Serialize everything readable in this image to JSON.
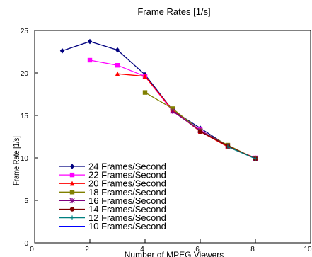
{
  "chart_data": {
    "type": "line",
    "title": "Frame Rates [1/s]",
    "xlabel": "Number of MPEG Viewers",
    "ylabel": "Frame Rate [1/s]",
    "xlim": [
      0,
      10
    ],
    "ylim": [
      0,
      25
    ],
    "x_ticks": [
      0,
      2,
      4,
      6,
      8,
      10
    ],
    "y_ticks": [
      0,
      5,
      10,
      15,
      20,
      25
    ],
    "x_tick_labels": [
      "0",
      "2",
      "4",
      "6",
      "8",
      "10"
    ],
    "y_tick_labels": [
      "0",
      "5",
      "10",
      "15",
      "20",
      "25"
    ],
    "grid": false,
    "legend_position": "bottom-left",
    "series": [
      {
        "name": "24 Frames/Second",
        "color": "#00007f",
        "marker": "diamond",
        "x": [
          1,
          2,
          3,
          4,
          5,
          6,
          7,
          8
        ],
        "y": [
          22.6,
          23.7,
          22.7,
          19.8,
          15.6,
          13.5,
          11.4,
          9.9
        ]
      },
      {
        "name": "22 Frames/Second",
        "color": "#ff00ff",
        "marker": "square",
        "x": [
          2,
          3,
          4,
          5,
          6,
          7,
          8
        ],
        "y": [
          21.5,
          20.9,
          19.6,
          15.5,
          13.3,
          11.3,
          10.0
        ]
      },
      {
        "name": "20 Frames/Second",
        "color": "#ff0000",
        "marker": "triangle",
        "x": [
          3,
          4,
          5,
          6,
          7,
          8
        ],
        "y": [
          19.9,
          19.6,
          15.6,
          13.1,
          11.3,
          10.0
        ]
      },
      {
        "name": "18 Frames/Second",
        "color": "#808000",
        "marker": "square",
        "x": [
          4,
          5,
          6,
          7,
          8
        ],
        "y": [
          17.7,
          15.8,
          13.2,
          11.5,
          9.9
        ]
      },
      {
        "name": "16 Frames/Second",
        "color": "#800080",
        "marker": "star",
        "x": [
          5,
          6,
          7,
          8
        ],
        "y": [
          15.5,
          13.2,
          11.4,
          9.9
        ]
      },
      {
        "name": "14 Frames/Second",
        "color": "#800000",
        "marker": "circle",
        "x": [
          6,
          7,
          8
        ],
        "y": [
          13.1,
          11.4,
          9.9
        ]
      },
      {
        "name": "12 Frames/Second",
        "color": "#008080",
        "marker": "plus",
        "x": [
          7,
          8
        ],
        "y": [
          11.3,
          9.9
        ]
      },
      {
        "name": "10 Frames/Second",
        "color": "#0000ff",
        "marker": "none",
        "x": [
          8
        ],
        "y": [
          9.9
        ]
      }
    ]
  }
}
